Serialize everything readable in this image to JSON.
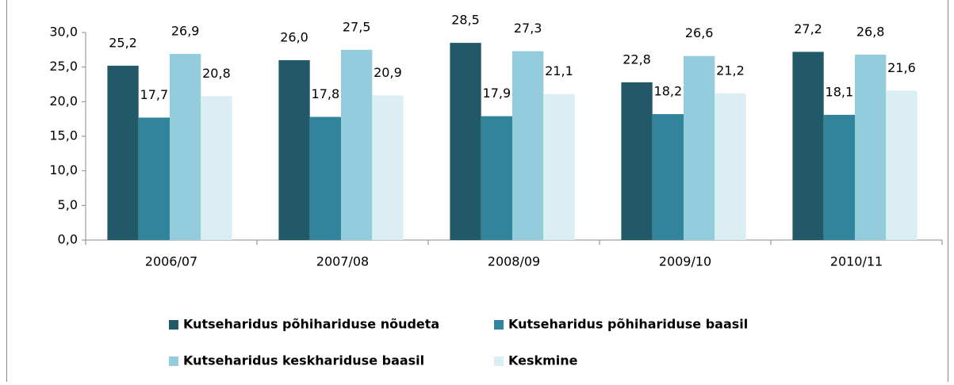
{
  "chart_data": {
    "type": "bar",
    "categories": [
      "2006/07",
      "2007/08",
      "2008/09",
      "2009/10",
      "2010/11"
    ],
    "series": [
      {
        "name": "Kutseharidus põhihariduse nõudeta",
        "color": "#215968",
        "values": [
          25.2,
          26.0,
          28.5,
          22.8,
          27.2
        ],
        "value_labels": [
          "25,2",
          "26,0",
          "28,5",
          "22,8",
          "27,2"
        ]
      },
      {
        "name": "Kutseharidus põhihariduse baasil",
        "color": "#31849b",
        "values": [
          17.7,
          17.8,
          17.9,
          18.2,
          18.1
        ],
        "value_labels": [
          "17,7",
          "17,8",
          "17,9",
          "18,2",
          "18,1"
        ]
      },
      {
        "name": "Kutseharidus keskhariduse baasil",
        "color": "#93cddd",
        "values": [
          26.9,
          27.5,
          27.3,
          26.6,
          26.8
        ],
        "value_labels": [
          "26,9",
          "27,5",
          "27,3",
          "26,6",
          "26,8"
        ]
      },
      {
        "name": "Keskmine",
        "color": "#dbeef4",
        "values": [
          20.8,
          20.9,
          21.1,
          21.2,
          21.6
        ],
        "value_labels": [
          "20,8",
          "20,9",
          "21,1",
          "21,2",
          "21,6"
        ]
      }
    ],
    "ylim": [
      0,
      30
    ],
    "yticks": [
      {
        "value": 0,
        "label": "0,0"
      },
      {
        "value": 5,
        "label": "5,0"
      },
      {
        "value": 10,
        "label": "10,0"
      },
      {
        "value": 15,
        "label": "15,0"
      },
      {
        "value": 20,
        "label": "20,0"
      },
      {
        "value": 25,
        "label": "25,0"
      },
      {
        "value": 30,
        "label": "30,0"
      }
    ],
    "legend": "bottom"
  }
}
